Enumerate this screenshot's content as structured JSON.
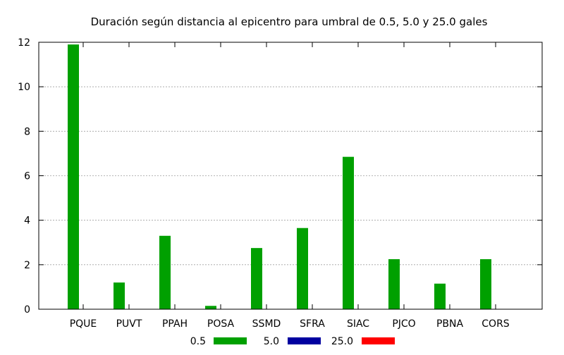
{
  "chart_data": {
    "type": "bar",
    "title": "Duración según distancia al epicentro para umbral de 0.5, 5.0 y 25.0 gales",
    "xlabel": "",
    "ylabel": "",
    "categories": [
      "PQUE",
      "PUVT",
      "PPAH",
      "POSA",
      "SSMD",
      "SFRA",
      "SIAC",
      "PJCO",
      "PBNA",
      "CORS"
    ],
    "ylim": [
      0,
      12
    ],
    "yticks": [
      "0",
      "2",
      "4",
      "6",
      "8",
      "10",
      "12"
    ],
    "grid": true,
    "legend_position": "bottom-center",
    "series": [
      {
        "name": "0.5",
        "color": "#00a000",
        "values": [
          11.9,
          1.2,
          3.3,
          0.15,
          2.75,
          3.65,
          6.85,
          2.25,
          1.15,
          2.25
        ]
      },
      {
        "name": "5.0",
        "color": "#0000a0",
        "values": [
          0,
          0,
          0,
          0,
          0,
          0,
          0,
          0,
          0,
          0
        ]
      },
      {
        "name": "25.0",
        "color": "#ff0000",
        "values": [
          0,
          0,
          0,
          0,
          0,
          0,
          0,
          0,
          0,
          0
        ]
      }
    ]
  }
}
